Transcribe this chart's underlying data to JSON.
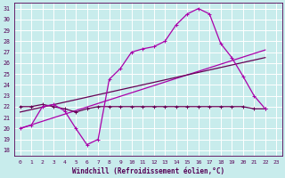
{
  "xlabel": "Windchill (Refroidissement éolien,°C)",
  "background_color": "#c8ecec",
  "grid_color": "#ffffff",
  "line_color_main": "#aa00aa",
  "line_color_dark": "#660055",
  "xlim": [
    -0.5,
    23.5
  ],
  "ylim": [
    17.5,
    31.5
  ],
  "yticks": [
    18,
    19,
    20,
    21,
    22,
    23,
    24,
    25,
    26,
    27,
    28,
    29,
    30,
    31
  ],
  "xticks": [
    0,
    1,
    2,
    3,
    4,
    5,
    6,
    7,
    8,
    9,
    10,
    11,
    12,
    13,
    14,
    15,
    16,
    17,
    18,
    19,
    20,
    21,
    22,
    23
  ],
  "curve1_x": [
    0,
    1,
    2,
    3,
    4,
    5,
    6,
    7,
    8,
    9,
    10,
    11,
    12,
    13,
    14,
    15,
    16,
    17,
    18,
    19,
    20,
    21,
    22
  ],
  "curve1_y": [
    20.0,
    20.3,
    22.0,
    22.2,
    21.6,
    20.0,
    18.5,
    19.0,
    24.5,
    25.5,
    27.0,
    27.3,
    27.5,
    28.0,
    29.5,
    30.5,
    31.0,
    30.5,
    27.8,
    26.5,
    24.8,
    23.0,
    21.8
  ],
  "curve2_x": [
    0,
    1,
    2,
    3,
    4,
    5,
    6,
    7,
    8,
    9,
    10,
    11,
    12,
    13,
    14,
    15,
    16,
    17,
    18,
    19,
    20,
    21,
    22
  ],
  "curve2_y": [
    22.0,
    22.0,
    22.2,
    22.0,
    21.8,
    21.5,
    21.8,
    22.0,
    22.0,
    22.0,
    22.0,
    22.0,
    22.0,
    22.0,
    22.0,
    22.0,
    22.0,
    22.0,
    22.0,
    22.0,
    22.0,
    21.8,
    21.8
  ],
  "curve3_x": [
    0,
    22
  ],
  "curve3_y": [
    20.0,
    27.2
  ],
  "curve4_x": [
    0,
    22
  ],
  "curve4_y": [
    21.5,
    26.5
  ]
}
